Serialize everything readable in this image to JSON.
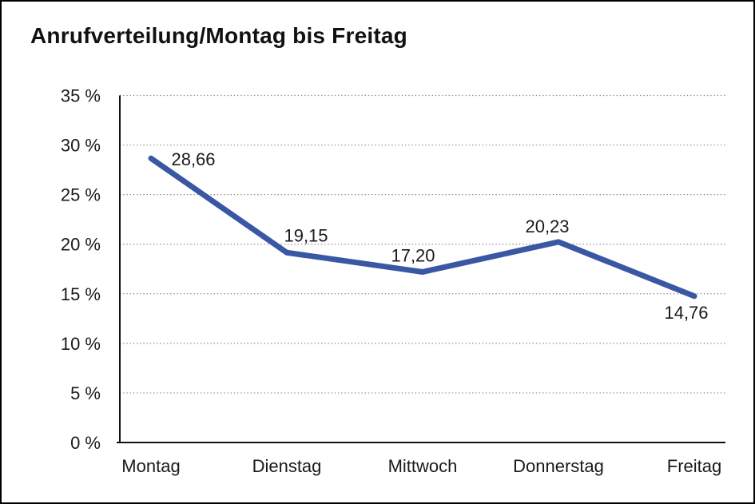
{
  "page": {
    "background_color": "#ffffff",
    "frame_border_color": "#000000"
  },
  "chart_data": {
    "type": "line",
    "title": "Anrufverteilung/Montag bis Freitag",
    "categories": [
      "Montag",
      "Dienstag",
      "Mittwoch",
      "Donnerstag",
      "Freitag"
    ],
    "values": [
      28.66,
      19.15,
      17.2,
      20.23,
      14.76
    ],
    "data_labels": [
      "28,66",
      "19,15",
      "17,20",
      "20,23",
      "14,76"
    ],
    "xlabel": "",
    "ylabel": "",
    "ylim": [
      0,
      35
    ],
    "y_tick_step": 5,
    "y_tick_labels": [
      "0 %",
      "5 %",
      "10 %",
      "15 %",
      "20 %",
      "25 %",
      "30 %",
      "35 %"
    ],
    "grid": "horizontal-dotted",
    "legend": "none",
    "line_color": "#3A57A4",
    "grid_color": "#8a8a8a",
    "axis_color": "#111111",
    "text_color": "#1a1a1a"
  }
}
